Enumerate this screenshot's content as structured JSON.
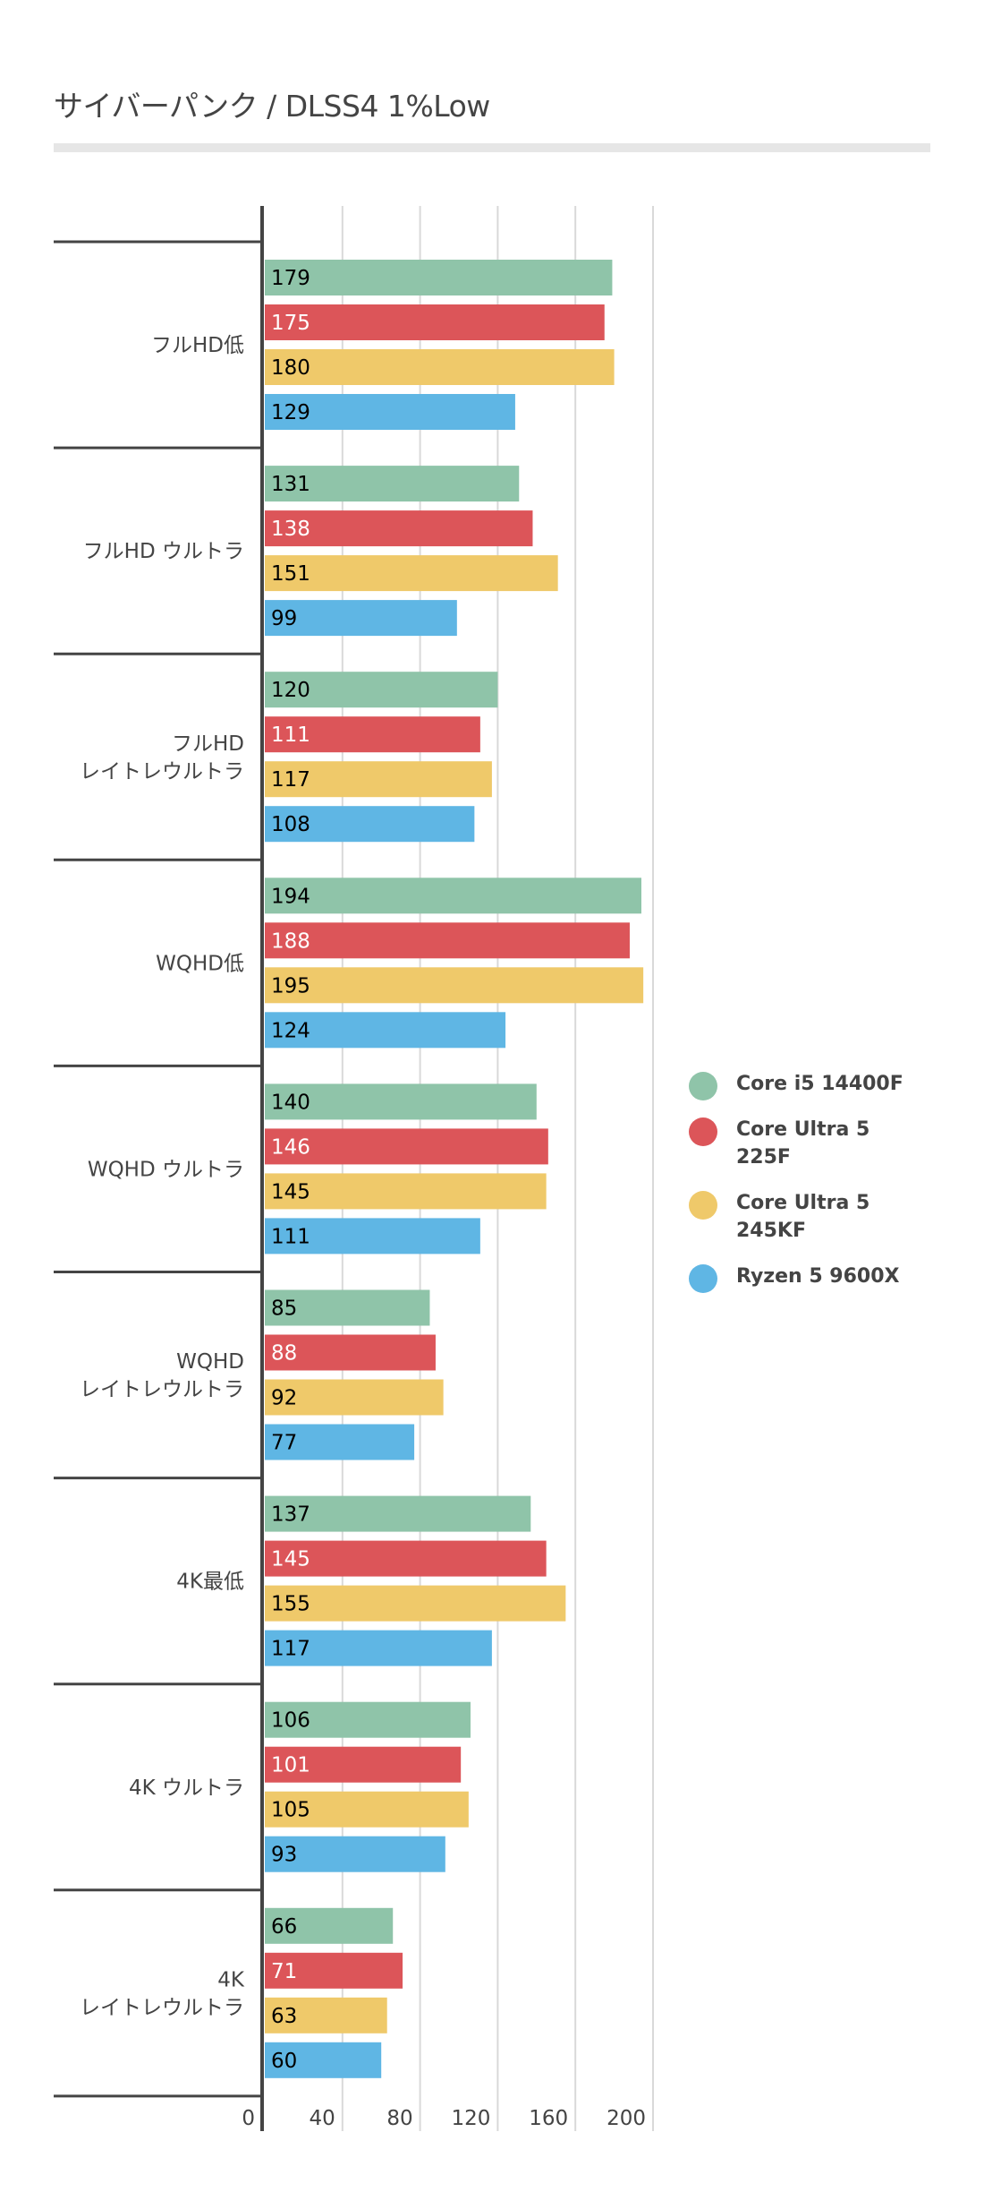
{
  "chart_data": {
    "type": "bar",
    "orientation": "horizontal",
    "title": "サイバーパンク / DLSS4 1%Low",
    "xlabel": "",
    "ylabel": "",
    "xlim": [
      0,
      200
    ],
    "x_ticks": [
      "0",
      "40",
      "80",
      "120",
      "160",
      "200"
    ],
    "grid": true,
    "legend_position": "right",
    "categories": [
      [
        "フルHD低"
      ],
      [
        "フルHD ウルトラ"
      ],
      [
        "フルHD",
        "レイトレウルトラ"
      ],
      [
        "WQHD低"
      ],
      [
        "WQHD ウルトラ"
      ],
      [
        "WQHD",
        "レイトレウルトラ"
      ],
      [
        "4K最低"
      ],
      [
        "4K ウルトラ"
      ],
      [
        "4K",
        "レイトレウルトラ"
      ]
    ],
    "series": [
      {
        "name": "Core i5 14400F",
        "color": "#8fc4a9",
        "label_color": "#000000",
        "values": [
          179,
          131,
          120,
          194,
          140,
          85,
          137,
          106,
          66
        ]
      },
      {
        "name": "Core Ultra 5 225F",
        "color": "#dc5559",
        "label_color": "#ffffff",
        "values": [
          175,
          138,
          111,
          188,
          146,
          88,
          145,
          101,
          71
        ]
      },
      {
        "name": "Core Ultra 5 245KF",
        "legend_lines": [
          "Core Ultra 5",
          "245KF"
        ],
        "color": "#efc96a",
        "label_color": "#000000",
        "values": [
          180,
          151,
          117,
          195,
          145,
          92,
          155,
          105,
          63
        ]
      },
      {
        "name": "Ryzen 5 9600X",
        "color": "#5fb6e4",
        "label_color": "#000000",
        "values": [
          129,
          99,
          108,
          124,
          111,
          77,
          117,
          93,
          60
        ]
      }
    ]
  }
}
